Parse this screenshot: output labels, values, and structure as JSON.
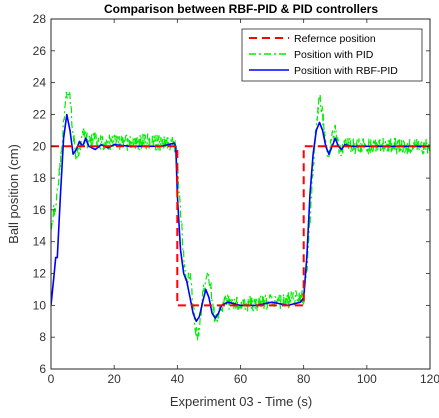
{
  "chart_data": {
    "type": "line",
    "title": "Comparison between RBF-PID & PID controllers",
    "xlabel": "Experiment 03 - Time (s)",
    "ylabel": "Ball position (cm)",
    "xlim": [
      0,
      120
    ],
    "ylim": [
      6,
      28
    ],
    "xticks": [
      0,
      20,
      40,
      60,
      80,
      100,
      120
    ],
    "yticks": [
      6,
      8,
      10,
      12,
      14,
      16,
      18,
      20,
      22,
      24,
      26,
      28
    ],
    "grid": false,
    "legend_position": "top-right",
    "series": [
      {
        "name": "Refernce position",
        "color": "#ff0000",
        "style": "dashed",
        "x": [
          0,
          40,
          40,
          80,
          80,
          120
        ],
        "y": [
          20,
          20,
          10,
          10,
          20,
          20
        ]
      },
      {
        "name": "Position with PID",
        "color": "#00ee00",
        "style": "dashdot",
        "noise": 0.5,
        "x": [
          0,
          1,
          2,
          3,
          4,
          5,
          6,
          7,
          8,
          9,
          10,
          12,
          14,
          16,
          20,
          25,
          30,
          35,
          39,
          40,
          41,
          42,
          43,
          44,
          45,
          46,
          47,
          48,
          49,
          50,
          51,
          52,
          53,
          54,
          56,
          60,
          65,
          70,
          75,
          79,
          80,
          81,
          82,
          83,
          84,
          85,
          86,
          87,
          88,
          89,
          90,
          91,
          92,
          93,
          95,
          100,
          105,
          110,
          120
        ],
        "y": [
          15,
          16,
          17,
          19,
          21.5,
          23.5,
          23,
          21,
          19.5,
          19.8,
          20.8,
          20.2,
          20.5,
          20.2,
          20.3,
          20.2,
          20.3,
          20.2,
          20.3,
          19,
          16,
          13,
          11.5,
          12,
          10,
          8.2,
          8.5,
          10.5,
          11.5,
          12,
          10.5,
          8.8,
          9.5,
          10,
          10.2,
          10.1,
          10.1,
          10.2,
          10.3,
          10.5,
          10.5,
          12,
          15.5,
          18.5,
          21.5,
          23,
          22,
          20,
          19.5,
          20.5,
          21,
          20,
          19.8,
          20.3,
          20,
          20,
          20,
          20,
          20
        ]
      },
      {
        "name": "Position with RBF-PID",
        "color": "#0000ff",
        "style": "solid",
        "x": [
          0,
          1,
          1.5,
          2,
          3,
          4,
          5,
          6,
          7,
          8,
          9,
          10,
          11,
          12,
          14,
          16,
          18,
          20,
          25,
          30,
          35,
          39,
          39.5,
          40,
          41,
          42,
          43,
          44,
          45,
          46,
          47,
          48,
          49,
          50,
          51,
          52,
          53,
          54,
          56,
          60,
          65,
          70,
          75,
          79,
          80,
          81,
          82,
          83,
          84,
          85,
          86,
          87,
          88,
          89,
          90,
          91,
          92,
          93,
          95,
          100,
          105,
          110,
          120
        ],
        "y": [
          10,
          12,
          13,
          13,
          17,
          20.5,
          22,
          21,
          19.5,
          19.8,
          20.3,
          20,
          20.5,
          20,
          19.8,
          20.1,
          19.9,
          20.1,
          20,
          20,
          20,
          20.2,
          20,
          17,
          13.5,
          12,
          11.5,
          10.5,
          9.5,
          9,
          9.3,
          10.2,
          11,
          10.5,
          9.5,
          9.2,
          9.5,
          10,
          10.2,
          10,
          10,
          10.2,
          10,
          10.2,
          10.5,
          13,
          17,
          19.5,
          21,
          21.5,
          21,
          20,
          19.5,
          20,
          20.5,
          20,
          19.8,
          20.1,
          20,
          20,
          20,
          20,
          20
        ]
      }
    ]
  }
}
